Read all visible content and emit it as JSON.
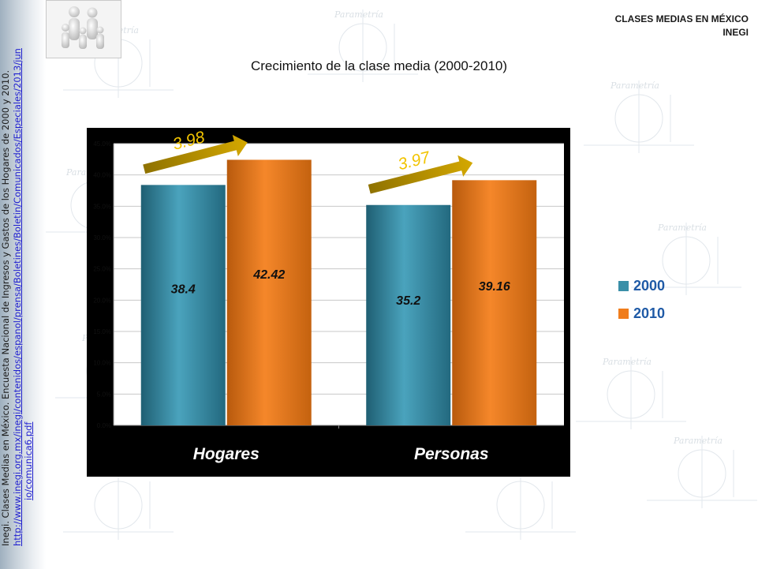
{
  "header": {
    "org_line1": "CLASES MEDIAS EN MÉXICO",
    "org_line2": "INEGI"
  },
  "watermark_text": "Parametría",
  "source": {
    "text": "Inegi. Clases Medias en México. Encuesta Nacional de Ingresos y Gastos de los Hogares de 2000 y 2010.",
    "link_part1": "http://www.inegi.org.mx/inegi/contenidos/espanol/prensa/Boletines/Boletin/Comunicados/Especiales/2013/jun",
    "link_part2": "io/comunica6.pdf"
  },
  "colors": {
    "series_2000": "#3a8fa8",
    "series_2010": "#f07d1c",
    "arrow": "#c9a000",
    "panel": "#000000"
  },
  "chart_data": {
    "type": "bar",
    "title": "Crecimiento de la clase media (2000-2010)",
    "categories": [
      "Hogares",
      "Personas"
    ],
    "series": [
      {
        "name": "2000",
        "values": [
          38.4,
          35.2
        ]
      },
      {
        "name": "2010",
        "values": [
          42.42,
          39.16
        ]
      }
    ],
    "ytick_labels": [
      "0.0%",
      "5.0%",
      "10.0%",
      "15.0%",
      "20.0%",
      "25.0%",
      "30.0%",
      "35.0%",
      "40.0%",
      "45.0%"
    ],
    "growth_annotations": [
      "3.98",
      "3.97"
    ],
    "legend_position": "right",
    "grid": true
  }
}
